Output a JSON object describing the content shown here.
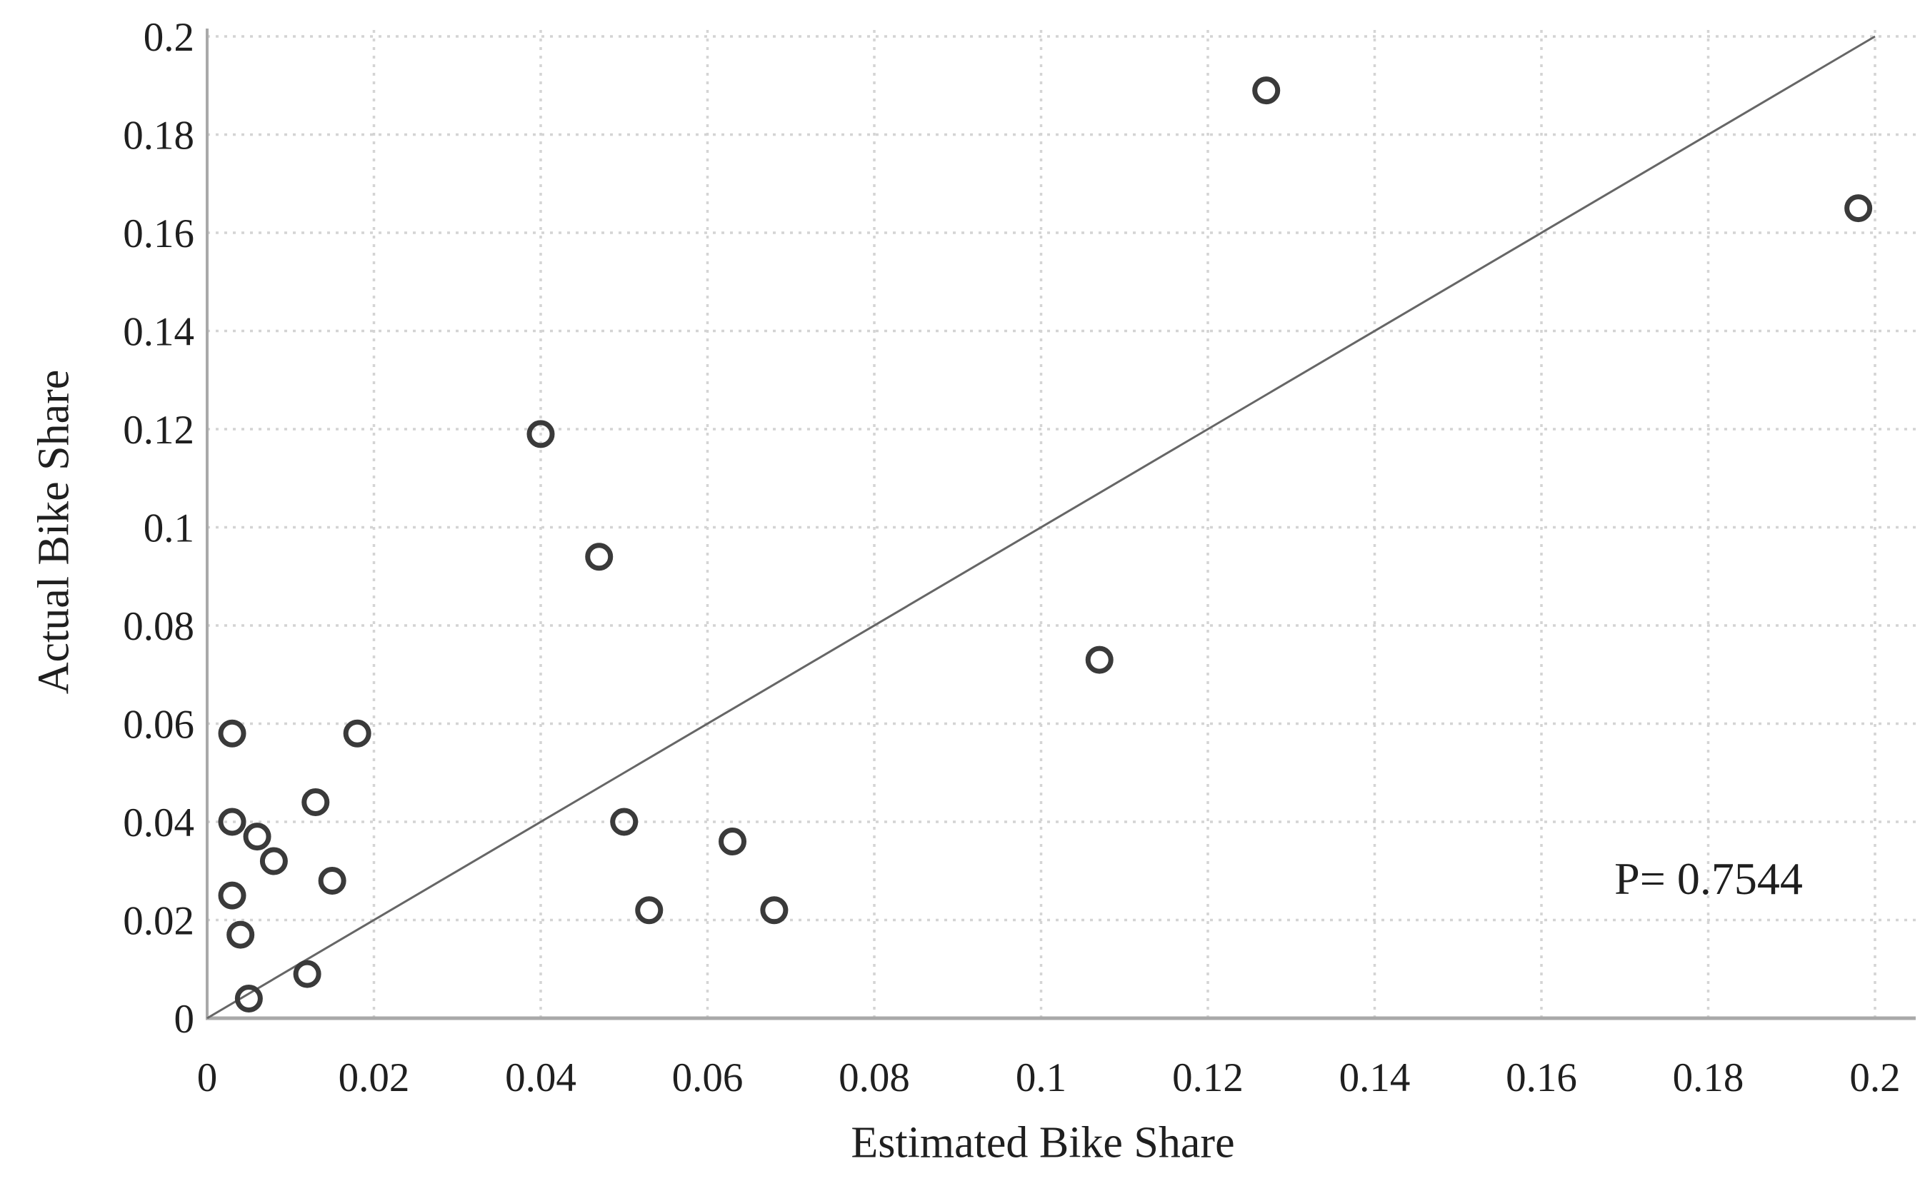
{
  "chart_data": {
    "type": "scatter",
    "title": "",
    "xlabel": "Estimated Bike Share",
    "ylabel": "Actual Bike Share",
    "xlim": [
      0,
      0.2055
    ],
    "ylim": [
      0,
      0.2075
    ],
    "x_ticks": [
      0,
      0.02,
      0.04,
      0.06,
      0.08,
      0.1,
      0.12,
      0.14,
      0.16,
      0.18,
      0.2
    ],
    "x_tick_labels": [
      "0",
      "0.02",
      "0.04",
      "0.06",
      "0.08",
      "0.1",
      "0.12",
      "0.14",
      "0.16",
      "0.18",
      "0.2"
    ],
    "y_ticks": [
      0,
      0.02,
      0.04,
      0.06,
      0.08,
      0.1,
      0.12,
      0.14,
      0.16,
      0.18,
      0.2
    ],
    "y_tick_labels": [
      "0",
      "0.02",
      "0.04",
      "0.06",
      "0.08",
      "0.1",
      "0.12",
      "0.14",
      "0.16",
      "0.18",
      "0.2"
    ],
    "grid": {
      "show": true,
      "interval": 0.02,
      "style": "dotted"
    },
    "legend": {
      "show": false
    },
    "series": [
      {
        "name": "bike-share-points",
        "marker": "open-circle",
        "points": [
          [
            0.003,
            0.058
          ],
          [
            0.018,
            0.058
          ],
          [
            0.013,
            0.044
          ],
          [
            0.003,
            0.04
          ],
          [
            0.006,
            0.037
          ],
          [
            0.008,
            0.032
          ],
          [
            0.015,
            0.028
          ],
          [
            0.003,
            0.025
          ],
          [
            0.004,
            0.017
          ],
          [
            0.005,
            0.004
          ],
          [
            0.012,
            0.009
          ],
          [
            0.05,
            0.04
          ],
          [
            0.063,
            0.036
          ],
          [
            0.053,
            0.022
          ],
          [
            0.068,
            0.022
          ],
          [
            0.04,
            0.119
          ],
          [
            0.047,
            0.094
          ],
          [
            0.107,
            0.073
          ],
          [
            0.127,
            0.189
          ],
          [
            0.198,
            0.165
          ]
        ]
      }
    ],
    "reference_line": {
      "name": "identity-line",
      "from": [
        0,
        0
      ],
      "to": [
        0.2,
        0.2
      ]
    },
    "annotation": {
      "text": "P= 0.7544",
      "x": 0.18,
      "y": 0.028
    }
  },
  "style": {
    "background": "#ffffff",
    "marker_color": "#3a3a3a",
    "grid_color": "#d4d4d4",
    "axis_color": "#a9a9a9",
    "line_color": "#666666",
    "text_color": "#1f1f1f"
  }
}
